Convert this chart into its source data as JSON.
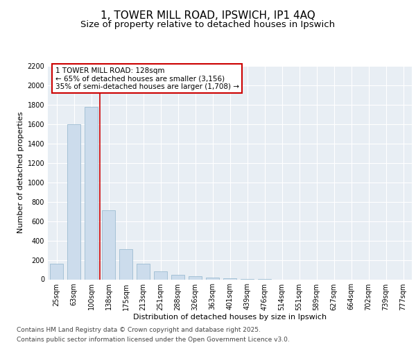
{
  "title": "1, TOWER MILL ROAD, IPSWICH, IP1 4AQ",
  "subtitle": "Size of property relative to detached houses in Ipswich",
  "xlabel": "Distribution of detached houses by size in Ipswich",
  "ylabel": "Number of detached properties",
  "categories": [
    "25sqm",
    "63sqm",
    "100sqm",
    "138sqm",
    "175sqm",
    "213sqm",
    "251sqm",
    "288sqm",
    "326sqm",
    "363sqm",
    "401sqm",
    "439sqm",
    "476sqm",
    "514sqm",
    "551sqm",
    "589sqm",
    "627sqm",
    "664sqm",
    "702sqm",
    "739sqm",
    "777sqm"
  ],
  "values": [
    160,
    1600,
    1780,
    710,
    310,
    160,
    85,
    50,
    30,
    20,
    10,
    5,
    2,
    0,
    0,
    0,
    0,
    0,
    0,
    0,
    0
  ],
  "bar_color": "#ccdcec",
  "bar_edge_color": "#90b4cc",
  "vline_x_index": 3,
  "highlight_color": "#cc0000",
  "annotation_text": "1 TOWER MILL ROAD: 128sqm\n← 65% of detached houses are smaller (3,156)\n35% of semi-detached houses are larger (1,708) →",
  "annotation_box_edgecolor": "#cc0000",
  "ylim": [
    0,
    2200
  ],
  "yticks": [
    0,
    200,
    400,
    600,
    800,
    1000,
    1200,
    1400,
    1600,
    1800,
    2000,
    2200
  ],
  "background_color": "#e8eef4",
  "grid_color": "#ffffff",
  "footer_line1": "Contains HM Land Registry data © Crown copyright and database right 2025.",
  "footer_line2": "Contains public sector information licensed under the Open Government Licence v3.0.",
  "title_fontsize": 11,
  "subtitle_fontsize": 9.5,
  "axis_label_fontsize": 8,
  "tick_fontsize": 7,
  "annotation_fontsize": 7.5,
  "footer_fontsize": 6.5
}
